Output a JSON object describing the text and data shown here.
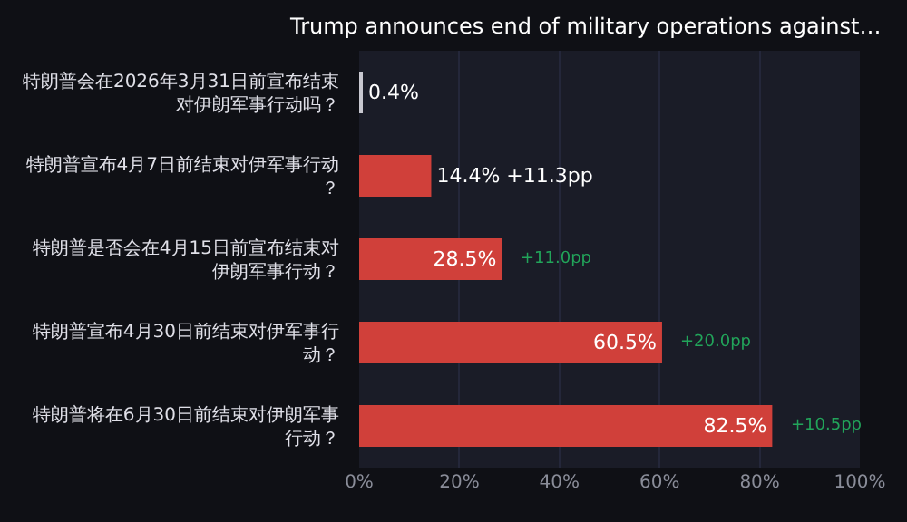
{
  "chart_data": {
    "type": "bar",
    "orientation": "horizontal",
    "title": "Trump announces end of military operations against…",
    "categories": [
      "特朗普会在2026年3月31日前宣布结束对伊朗军事行动吗？",
      "特朗普宣布4月7日前结束对伊军事行动？",
      "特朗普是否会在4月15日前宣布结束对伊朗军事行动？",
      "特朗普宣布4月30日前结束对伊军事行动？",
      "特朗普将在6月30日前结束对伊朗军事行动？"
    ],
    "values": [
      0.4,
      14.4,
      28.5,
      60.5,
      82.5
    ],
    "colors": [
      "#c8c8d0",
      "#d0403a",
      "#d0403a",
      "#d0403a",
      "#d0403a"
    ],
    "value_labels": [
      "0.4%",
      "14.4% +11.3pp",
      "28.5%",
      "60.5%",
      "82.5%"
    ],
    "annotations": [
      {
        "text": "+11.0pp",
        "x": 28.5,
        "y": "特朗普是否会在4月15日前宣布结束对伊朗军事行动？"
      },
      {
        "text": "+20.0pp",
        "x": 60.5,
        "y": "特朗普宣布4月30日前结束对伊军事行动？"
      },
      {
        "text": "+10.5pp",
        "x": 82.5,
        "y": "特朗普将在6月30日前结束对伊朗军事行动？"
      }
    ],
    "xlim": [
      0,
      100
    ],
    "xticks": [
      {
        "value": 0,
        "label": "0%"
      },
      {
        "value": 20,
        "label": "20%"
      },
      {
        "value": 40,
        "label": "40%"
      },
      {
        "value": 60,
        "label": "60%"
      },
      {
        "value": 80,
        "label": "80%"
      },
      {
        "value": 100,
        "label": "100%"
      }
    ],
    "grid": "x",
    "legend": false
  }
}
